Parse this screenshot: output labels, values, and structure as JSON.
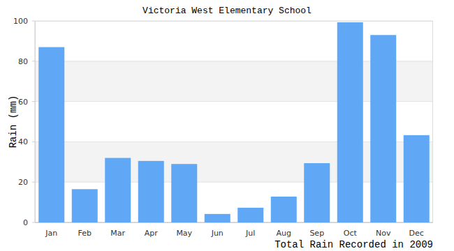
{
  "chart_data": {
    "type": "bar",
    "title": "Victoria West Elementary School",
    "x_label": "Total Rain Recorded in 2009",
    "y_label": "Rain (mm)",
    "categories": [
      "Jan",
      "Feb",
      "Mar",
      "Apr",
      "May",
      "Jun",
      "Jul",
      "Aug",
      "Sep",
      "Oct",
      "Nov",
      "Dec"
    ],
    "values": [
      87,
      16.5,
      32,
      30.5,
      29,
      4.2,
      7.3,
      12.8,
      29.4,
      99.3,
      93,
      43.3
    ],
    "color": "#60a8f5",
    "ylim": [
      0,
      100
    ],
    "yticks": [
      0,
      20,
      40,
      60,
      80,
      100
    ],
    "grid": true
  }
}
